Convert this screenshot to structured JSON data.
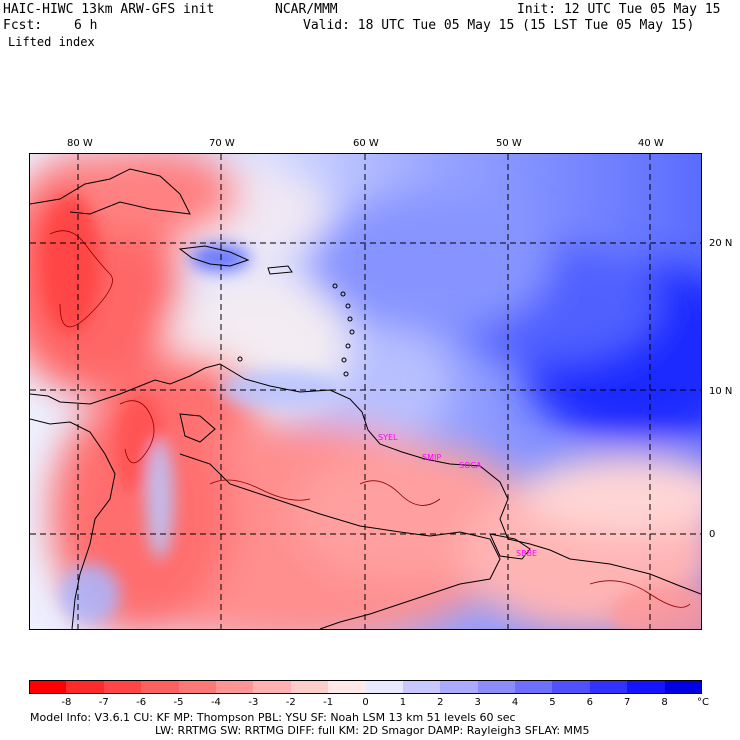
{
  "header": {
    "model": "HAIC-HIWC 13km ARW-GFS init",
    "org": "NCAR/MMM",
    "init": "Init: 12 UTC Tue 05 May 15",
    "fcst_label": "Fcst:",
    "fcst_value": "6 h",
    "valid": "Valid: 18 UTC Tue 05 May 15 (15 LST Tue 05 May 15)",
    "field": "Lifted index"
  },
  "map": {
    "lon_labels": [
      "80 W",
      "70 W",
      "60 W",
      "50 W",
      "40 W"
    ],
    "lat_labels": [
      "20 N",
      "10 N",
      "0"
    ],
    "stations": [
      "SYEL",
      "SMJP",
      "SOCA",
      "SBBE"
    ]
  },
  "colorbar": {
    "labels": [
      "-8",
      "-7",
      "-6",
      "-5",
      "-4",
      "-3",
      "-2",
      "-1",
      "0",
      "1",
      "2",
      "3",
      "4",
      "5",
      "6",
      "7",
      "8"
    ],
    "unit": "°C",
    "colors": [
      "#ff0000",
      "#ff2a2a",
      "#ff4545",
      "#ff5f5f",
      "#ff7878",
      "#ff9494",
      "#ffb0b0",
      "#ffcccc",
      "#ffe8e8",
      "#e8e8ff",
      "#c8c8ff",
      "#aaaaff",
      "#8c8cff",
      "#6e6eff",
      "#5050ff",
      "#3232ff",
      "#1414ff",
      "#0000e0"
    ]
  },
  "footer": {
    "line1": "Model Info: V3.6.1    CU: KF      MP: Thompson     PBL: YSU      SF: Noah LSM      13 km    51 levels   60 sec",
    "line2": "LW: RRTMG    SW: RRTMG   DIFF: full    KM: 2D Smagor  DAMP: Rayleigh3   SFLAY: MM5"
  }
}
